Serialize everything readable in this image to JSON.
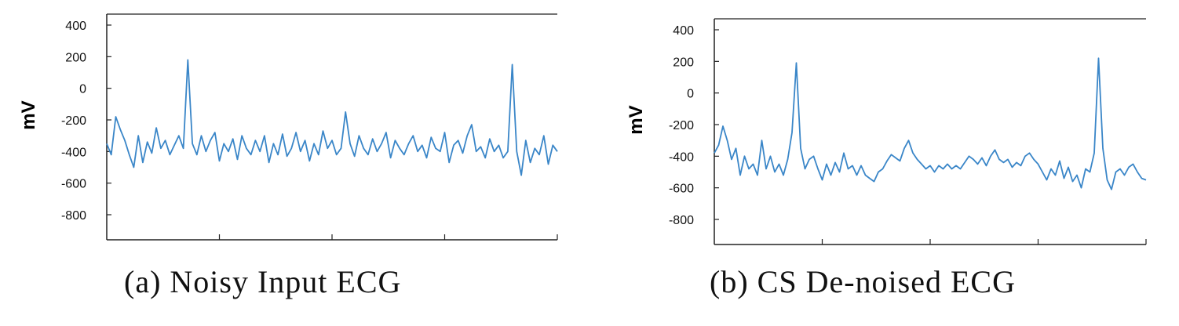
{
  "chart_data": [
    {
      "type": "line",
      "title": "(a) Noisy Input ECG",
      "ylabel": "mV",
      "xlabel": "",
      "ylim": [
        -800,
        400
      ],
      "yticks": [
        400,
        200,
        0,
        -200,
        -400,
        -600,
        -800
      ],
      "grid": false,
      "color": "#3a86c8",
      "series": [
        {
          "x": [
            0.0,
            0.01,
            0.02,
            0.03,
            0.04,
            0.05,
            0.06,
            0.07,
            0.08,
            0.09,
            0.1,
            0.11,
            0.12,
            0.13,
            0.14,
            0.15,
            0.16,
            0.17,
            0.18,
            0.19,
            0.2,
            0.21,
            0.22,
            0.23,
            0.24,
            0.25,
            0.26,
            0.27,
            0.28,
            0.29,
            0.3,
            0.31,
            0.32,
            0.33,
            0.34,
            0.35,
            0.36,
            0.37,
            0.38,
            0.39,
            0.4,
            0.41,
            0.42,
            0.43,
            0.44,
            0.45,
            0.46,
            0.47,
            0.48,
            0.49,
            0.5,
            0.51,
            0.52,
            0.53,
            0.54,
            0.55,
            0.56,
            0.57,
            0.58,
            0.59,
            0.6,
            0.61,
            0.62,
            0.63,
            0.64,
            0.65,
            0.66,
            0.67,
            0.68,
            0.69,
            0.7,
            0.71,
            0.72,
            0.73,
            0.74,
            0.75,
            0.76,
            0.77,
            0.78,
            0.79,
            0.8,
            0.81,
            0.82,
            0.83,
            0.84,
            0.85,
            0.86,
            0.87,
            0.88,
            0.89,
            0.9,
            0.91,
            0.92,
            0.93,
            0.94,
            0.95,
            0.96,
            0.97,
            0.98,
            0.99,
            1.0
          ],
          "y": [
            -350,
            -420,
            -180,
            -260,
            -330,
            -420,
            -500,
            -300,
            -470,
            -340,
            -410,
            -250,
            -380,
            -330,
            -420,
            -360,
            -300,
            -380,
            180,
            -350,
            -420,
            -300,
            -400,
            -330,
            -280,
            -460,
            -350,
            -400,
            -320,
            -450,
            -300,
            -380,
            -420,
            -330,
            -400,
            -300,
            -470,
            -350,
            -420,
            -290,
            -430,
            -380,
            -280,
            -400,
            -330,
            -460,
            -350,
            -420,
            -270,
            -380,
            -330,
            -420,
            -380,
            -150,
            -350,
            -430,
            -300,
            -380,
            -420,
            -320,
            -400,
            -350,
            -280,
            -440,
            -330,
            -380,
            -420,
            -350,
            -300,
            -400,
            -360,
            -440,
            -310,
            -380,
            -400,
            -280,
            -470,
            -360,
            -330,
            -410,
            -300,
            -230,
            -400,
            -370,
            -440,
            -320,
            -400,
            -360,
            -440,
            -400,
            150,
            -400,
            -550,
            -330,
            -470,
            -380,
            -420,
            -300,
            -480,
            -360,
            -400
          ]
        }
      ]
    },
    {
      "type": "line",
      "title": "(b) CS De-noised ECG",
      "ylabel": "mV",
      "xlabel": "",
      "ylim": [
        -800,
        400
      ],
      "yticks": [
        400,
        200,
        0,
        -200,
        -400,
        -600,
        -800
      ],
      "grid": false,
      "color": "#3a86c8",
      "series": [
        {
          "x": [
            0.0,
            0.01,
            0.02,
            0.03,
            0.04,
            0.05,
            0.06,
            0.07,
            0.08,
            0.09,
            0.1,
            0.11,
            0.12,
            0.13,
            0.14,
            0.15,
            0.16,
            0.17,
            0.18,
            0.19,
            0.2,
            0.21,
            0.22,
            0.23,
            0.24,
            0.25,
            0.26,
            0.27,
            0.28,
            0.29,
            0.3,
            0.31,
            0.32,
            0.33,
            0.34,
            0.35,
            0.36,
            0.37,
            0.38,
            0.39,
            0.4,
            0.41,
            0.42,
            0.43,
            0.44,
            0.45,
            0.46,
            0.47,
            0.48,
            0.49,
            0.5,
            0.51,
            0.52,
            0.53,
            0.54,
            0.55,
            0.56,
            0.57,
            0.58,
            0.59,
            0.6,
            0.61,
            0.62,
            0.63,
            0.64,
            0.65,
            0.66,
            0.67,
            0.68,
            0.69,
            0.7,
            0.71,
            0.72,
            0.73,
            0.74,
            0.75,
            0.76,
            0.77,
            0.78,
            0.79,
            0.8,
            0.81,
            0.82,
            0.83,
            0.84,
            0.85,
            0.86,
            0.87,
            0.88,
            0.89,
            0.9,
            0.91,
            0.92,
            0.93,
            0.94,
            0.95,
            0.96,
            0.97,
            0.98,
            0.99,
            1.0
          ],
          "y": [
            -380,
            -330,
            -210,
            -300,
            -420,
            -350,
            -520,
            -400,
            -480,
            -450,
            -520,
            -300,
            -480,
            -400,
            -500,
            -450,
            -520,
            -420,
            -250,
            190,
            -350,
            -480,
            -420,
            -400,
            -480,
            -550,
            -450,
            -520,
            -440,
            -500,
            -380,
            -480,
            -460,
            -520,
            -460,
            -520,
            -540,
            -560,
            -500,
            -480,
            -430,
            -390,
            -410,
            -430,
            -350,
            -300,
            -380,
            -420,
            -450,
            -480,
            -460,
            -500,
            -460,
            -480,
            -450,
            -480,
            -460,
            -480,
            -440,
            -400,
            -420,
            -450,
            -410,
            -460,
            -400,
            -360,
            -420,
            -440,
            -420,
            -470,
            -440,
            -460,
            -400,
            -380,
            -420,
            -450,
            -500,
            -550,
            -480,
            -520,
            -430,
            -540,
            -470,
            -560,
            -520,
            -600,
            -480,
            -500,
            -380,
            220,
            -350,
            -550,
            -610,
            -500,
            -480,
            -520,
            -470,
            -450,
            -500,
            -540,
            -550
          ]
        }
      ]
    }
  ]
}
